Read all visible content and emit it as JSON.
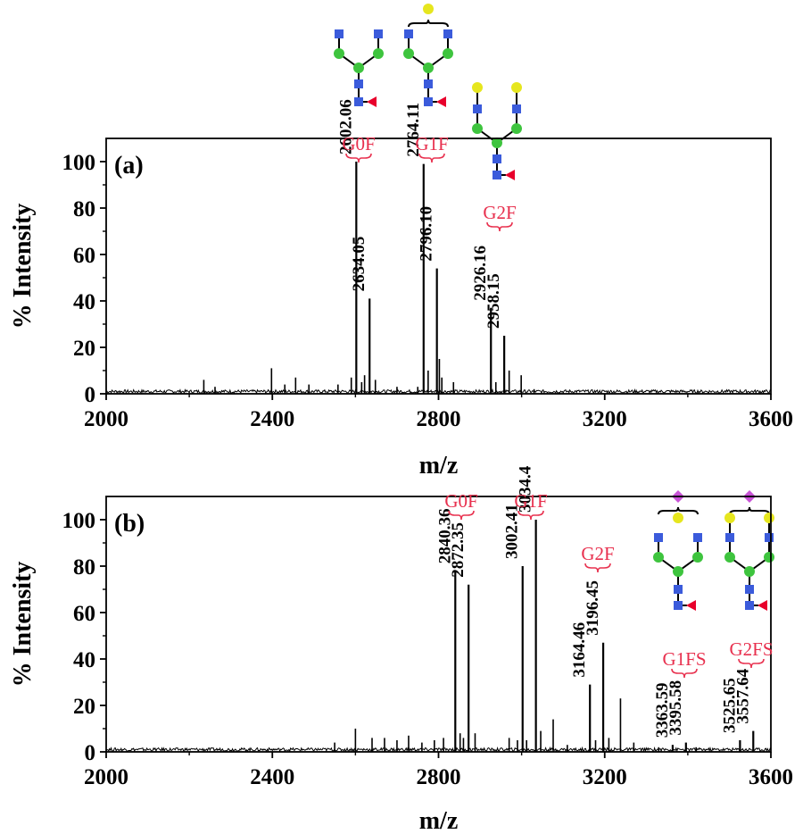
{
  "chart_data": [
    {
      "type": "line",
      "panel_label": "(a)",
      "xlabel": "m/z",
      "ylabel": "% Intensity",
      "xlim": [
        2000,
        3600
      ],
      "ylim": [
        0,
        110
      ],
      "xticks": [
        2000,
        2400,
        2800,
        3200,
        3600
      ],
      "yticks": [
        0,
        20,
        40,
        60,
        80,
        100
      ],
      "peaks": [
        {
          "x": 2602.06,
          "y": 100,
          "label": "2602.06"
        },
        {
          "x": 2634.05,
          "y": 41,
          "label": "2634.05"
        },
        {
          "x": 2764.11,
          "y": 99,
          "label": "2764.11"
        },
        {
          "x": 2796.1,
          "y": 54,
          "label": "2796.10"
        },
        {
          "x": 2926.16,
          "y": 37,
          "label": "2926.16"
        },
        {
          "x": 2958.15,
          "y": 25,
          "label": "2958.15"
        }
      ],
      "minor_peaks": [
        {
          "x": 2235,
          "y": 6
        },
        {
          "x": 2262,
          "y": 3
        },
        {
          "x": 2398,
          "y": 11
        },
        {
          "x": 2430,
          "y": 4
        },
        {
          "x": 2456,
          "y": 7
        },
        {
          "x": 2488,
          "y": 4
        },
        {
          "x": 2558,
          "y": 4
        },
        {
          "x": 2590,
          "y": 7
        },
        {
          "x": 2615,
          "y": 5
        },
        {
          "x": 2622,
          "y": 8
        },
        {
          "x": 2648,
          "y": 6
        },
        {
          "x": 2700,
          "y": 3
        },
        {
          "x": 2750,
          "y": 3
        },
        {
          "x": 2775,
          "y": 10
        },
        {
          "x": 2802,
          "y": 15
        },
        {
          "x": 2808,
          "y": 7
        },
        {
          "x": 2836,
          "y": 5
        },
        {
          "x": 2938,
          "y": 5
        },
        {
          "x": 2970,
          "y": 10
        },
        {
          "x": 2999,
          "y": 8
        },
        {
          "x": 3030,
          "y": 2
        }
      ],
      "glycans": [
        {
          "label": "G0F"
        },
        {
          "label": "G1F"
        },
        {
          "label": "G2F"
        }
      ]
    },
    {
      "type": "line",
      "panel_label": "(b)",
      "xlabel": "m/z",
      "ylabel": "% Intensity",
      "xlim": [
        2000,
        3600
      ],
      "ylim": [
        0,
        110
      ],
      "xticks": [
        2000,
        2400,
        2800,
        3200,
        3600
      ],
      "yticks": [
        0,
        20,
        40,
        60,
        80,
        100
      ],
      "peaks": [
        {
          "x": 2840.36,
          "y": 78,
          "label": "2840.36"
        },
        {
          "x": 2872.35,
          "y": 72,
          "label": "2872.35"
        },
        {
          "x": 3002.41,
          "y": 80,
          "label": "3002.41"
        },
        {
          "x": 3034.4,
          "y": 100,
          "label": "3034.4"
        },
        {
          "x": 3164.46,
          "y": 29,
          "label": "3164.46"
        },
        {
          "x": 3196.45,
          "y": 47,
          "label": "3196.45"
        },
        {
          "x": 3363.59,
          "y": 3,
          "label": "3363.59"
        },
        {
          "x": 3395.58,
          "y": 4,
          "label": "3395.58"
        },
        {
          "x": 3525.65,
          "y": 5,
          "label": "3525.65"
        },
        {
          "x": 3557.64,
          "y": 9,
          "label": "3557.64"
        }
      ],
      "minor_peaks": [
        {
          "x": 2550,
          "y": 4
        },
        {
          "x": 2600,
          "y": 10
        },
        {
          "x": 2640,
          "y": 6
        },
        {
          "x": 2670,
          "y": 6
        },
        {
          "x": 2700,
          "y": 5
        },
        {
          "x": 2728,
          "y": 7
        },
        {
          "x": 2760,
          "y": 4
        },
        {
          "x": 2790,
          "y": 5
        },
        {
          "x": 2812,
          "y": 6
        },
        {
          "x": 2852,
          "y": 8
        },
        {
          "x": 2860,
          "y": 6
        },
        {
          "x": 2888,
          "y": 8
        },
        {
          "x": 2970,
          "y": 6
        },
        {
          "x": 2990,
          "y": 5
        },
        {
          "x": 3012,
          "y": 5
        },
        {
          "x": 3046,
          "y": 9
        },
        {
          "x": 3076,
          "y": 14
        },
        {
          "x": 3110,
          "y": 3
        },
        {
          "x": 3178,
          "y": 5
        },
        {
          "x": 3210,
          "y": 6
        },
        {
          "x": 3238,
          "y": 23
        },
        {
          "x": 3270,
          "y": 4
        },
        {
          "x": 3330,
          "y": 2
        },
        {
          "x": 3420,
          "y": 2
        }
      ],
      "glycans": [
        {
          "label": "G0F"
        },
        {
          "label": "G1F"
        },
        {
          "label": "G2F"
        },
        {
          "label": "G1FS"
        },
        {
          "label": "G2FS"
        }
      ]
    }
  ]
}
